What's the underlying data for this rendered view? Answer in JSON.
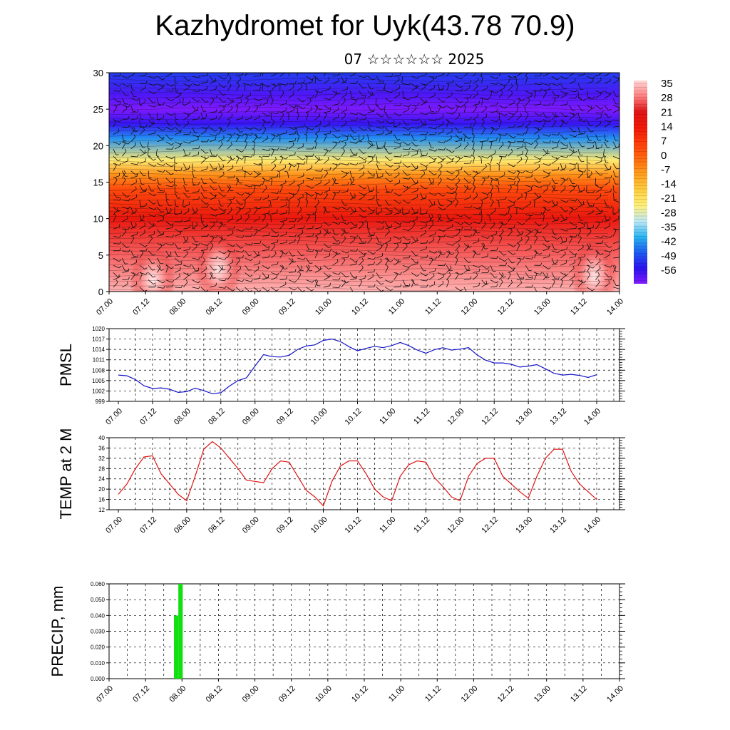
{
  "page": {
    "title": "Kazhydromet for Uyk(43.78 70.9)",
    "subtitle": "07 ☆☆☆☆☆☆ 2025"
  },
  "chart_data": [
    {
      "id": "cross-section",
      "type": "heatmap",
      "title": "",
      "xlabel": "",
      "ylabel": "",
      "x_tick_labels": [
        "07.00",
        "07.12",
        "08.00",
        "08.12",
        "09.00",
        "09.12",
        "10.00",
        "10.12",
        "11.00",
        "11.12",
        "12.00",
        "12.12",
        "13.00",
        "13.12",
        "14.00"
      ],
      "y_ticks": [
        0,
        5,
        10,
        15,
        20,
        25,
        30
      ],
      "ylim": [
        0,
        30
      ],
      "colorbar": {
        "labels": [
          "35",
          "28",
          "21",
          "14",
          "7",
          "0",
          "-7",
          "-14",
          "-21",
          "-28",
          "-35",
          "-42",
          "-49",
          "-56"
        ],
        "range": [
          -56,
          35
        ],
        "colors": [
          "#7f1aff",
          "#2a14f0",
          "#1c5ef2",
          "#29b5f2",
          "#bfe8f5",
          "#fff07a",
          "#ffcf40",
          "#ffa01e",
          "#ff6a10",
          "#ff3c0a",
          "#f21808",
          "#e01515",
          "#ff8080",
          "#ffd6d6"
        ]
      },
      "temperature_profile": [
        {
          "height": 0,
          "value": 32
        },
        {
          "height": 5,
          "value": 26
        },
        {
          "height": 10,
          "value": 17
        },
        {
          "height": 14,
          "value": 5
        },
        {
          "height": 16,
          "value": -5
        },
        {
          "height": 18,
          "value": -20
        },
        {
          "height": 21,
          "value": -38
        },
        {
          "height": 23,
          "value": -50
        },
        {
          "height": 25,
          "value": -56
        },
        {
          "height": 27,
          "value": -52
        },
        {
          "height": 30,
          "value": -45
        }
      ],
      "warm_cores": [
        {
          "x": 1.2,
          "height": 2.5
        },
        {
          "x": 3.0,
          "height": 4.0
        },
        {
          "x": 13.3,
          "height": 3.0
        }
      ],
      "overlay": "wind barbs"
    },
    {
      "id": "pmsl",
      "type": "line",
      "title": "",
      "ylabel": "PMSL",
      "xlabel": "",
      "x_tick_labels": [
        "07.00",
        "07.12",
        "08.00",
        "08.12",
        "09.00",
        "09.12",
        "10.00",
        "10.12",
        "11.00",
        "11.12",
        "12.00",
        "12.12",
        "13.00",
        "13.12",
        "14.00"
      ],
      "y_tick_labels": [
        "999",
        "1002",
        "1005",
        "1008",
        "1011",
        "1014",
        "1017",
        "1020"
      ],
      "ylim": [
        999,
        1020
      ],
      "grid": true,
      "color": "#1414c8",
      "x_step_hours": 3,
      "values": [
        1006.6,
        1006.4,
        1005.3,
        1003.5,
        1002.7,
        1002.9,
        1002.5,
        1001.6,
        1001.8,
        1002.8,
        1002.1,
        1001.2,
        1001.5,
        1003.4,
        1005.0,
        1005.8,
        1009.2,
        1012.5,
        1011.9,
        1011.8,
        1012.3,
        1014.0,
        1015.0,
        1015.3,
        1016.6,
        1017.0,
        1016.3,
        1014.8,
        1013.6,
        1014.3,
        1014.9,
        1014.5,
        1015.1,
        1016.0,
        1015.1,
        1013.8,
        1012.9,
        1013.9,
        1014.5,
        1013.8,
        1014.1,
        1014.5,
        1012.4,
        1010.9,
        1010.1,
        1010.1,
        1009.7,
        1008.9,
        1009.2,
        1009.6,
        1008.4,
        1007.1,
        1006.6,
        1006.8,
        1006.5,
        1005.9,
        1006.7
      ]
    },
    {
      "id": "temp2m",
      "type": "line",
      "title": "",
      "ylabel": "TEMP at 2 M",
      "xlabel": "",
      "x_tick_labels": [
        "07.00",
        "07.12",
        "08.00",
        "08.12",
        "09.00",
        "09.12",
        "10.00",
        "10.12",
        "11.00",
        "11.12",
        "12.00",
        "12.12",
        "13.00",
        "13.12",
        "14.00"
      ],
      "y_tick_labels": [
        "12",
        "16",
        "20",
        "24",
        "28",
        "32",
        "36",
        "40"
      ],
      "ylim": [
        12,
        40
      ],
      "grid": true,
      "color": "#e01414",
      "x_step_hours": 3,
      "values": [
        18.0,
        22.0,
        28.0,
        32.5,
        33.0,
        26.0,
        22.0,
        18.0,
        15.5,
        25.0,
        35.5,
        38.5,
        36.0,
        32.0,
        28.0,
        23.5,
        23.0,
        22.5,
        28.0,
        31.0,
        30.5,
        25.0,
        19.5,
        17.0,
        13.5,
        23.0,
        29.0,
        31.0,
        31.0,
        26.0,
        20.0,
        17.0,
        15.5,
        25.0,
        29.5,
        31.0,
        30.5,
        24.5,
        21.0,
        17.0,
        15.5,
        25.0,
        30.0,
        32.0,
        32.0,
        25.0,
        22.0,
        19.0,
        16.5,
        25.0,
        32.0,
        35.5,
        35.5,
        27.0,
        22.0,
        19.0,
        16.0
      ]
    },
    {
      "id": "precip",
      "type": "bar",
      "title": "",
      "ylabel": "PRECIP, mm",
      "xlabel": "",
      "x_tick_labels": [
        "07.00",
        "07.12",
        "08.00",
        "08.12",
        "09.00",
        "09.12",
        "10.00",
        "10.12",
        "11.00",
        "11.12",
        "12.00",
        "12.12",
        "13.00",
        "13.12",
        "14.00"
      ],
      "y_tick_labels": [
        "0.000",
        "0.010",
        "0.020",
        "0.030",
        "0.040",
        "0.050",
        "0.060"
      ],
      "ylim": [
        0,
        0.06
      ],
      "grid": true,
      "color": "#10e010",
      "bars": [
        {
          "x_start": 1.78,
          "x_end": 1.9,
          "value": 0.04
        },
        {
          "x_start": 1.9,
          "x_end": 2.02,
          "value": 0.06
        }
      ]
    }
  ]
}
